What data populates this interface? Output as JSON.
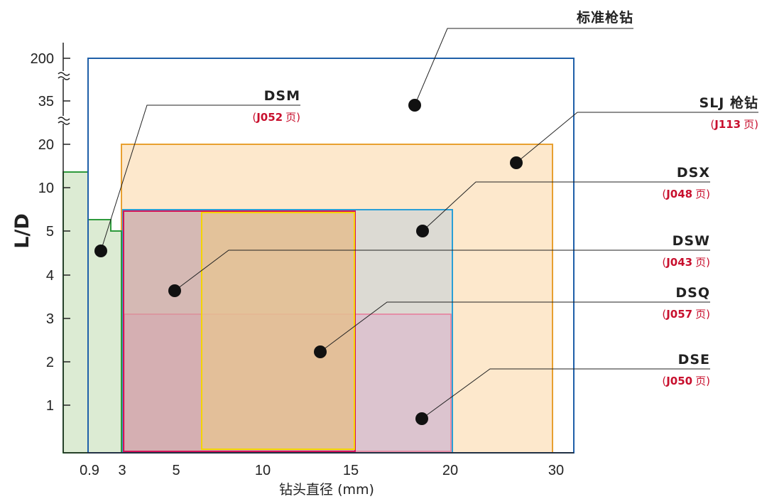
{
  "chart_data": {
    "type": "area",
    "xlabel": "钻头直径 (mm)",
    "ylabel": "L/D",
    "x_ticks": [
      "0.9",
      "3",
      "5",
      "10",
      "15",
      "20",
      "30"
    ],
    "y_ticks": [
      "1",
      "2",
      "3",
      "4",
      "5",
      "10",
      "20",
      "35",
      "200"
    ],
    "y_breaks": [
      "35",
      "200"
    ],
    "series": [
      {
        "name": "标准枪钻",
        "x_range": [
          0.9,
          32
        ],
        "ld_max": 200,
        "color": "#1f5fa8",
        "fill": "none"
      },
      {
        "name": "SLJ 枪钻",
        "ref_code": "J113",
        "ref_page": "页",
        "x_range": [
          3,
          30
        ],
        "ld_max": 20,
        "color": "#e8a030",
        "fill": "#fde8cc"
      },
      {
        "name": "DSX",
        "ref_code": "J048",
        "ref_page": "页",
        "x_range": [
          3,
          20
        ],
        "ld_max": 5,
        "color": "#2a9fd6",
        "fill": "#d6e6ef"
      },
      {
        "name": "DSW",
        "ref_code": "J043",
        "ref_page": "页",
        "x_range": [
          3,
          15
        ],
        "ld_max": 5,
        "color": "#d4145a",
        "fill": "#cf8f9c"
      },
      {
        "name": "DSQ",
        "ref_code": "J057",
        "ref_page": "页",
        "x_range": [
          6.5,
          15
        ],
        "ld_max": 5,
        "color": "#f5d400",
        "fill": "#f0cf6a"
      },
      {
        "name": "DSE",
        "ref_code": "J050",
        "ref_page": "页",
        "x_range": [
          3,
          20
        ],
        "ld_max": 3,
        "color": "#e87a9a",
        "fill": "#d89ab0"
      },
      {
        "name": "DSM",
        "ref_code": "J052",
        "ref_page": "页",
        "x_range": [
          0,
          3
        ],
        "ld_steps": [
          [
            0,
            10
          ],
          [
            0.9,
            5
          ],
          [
            2.5,
            5
          ],
          [
            3,
            5
          ]
        ],
        "color": "#2e9a3c",
        "fill": "#dcebd3"
      }
    ]
  }
}
